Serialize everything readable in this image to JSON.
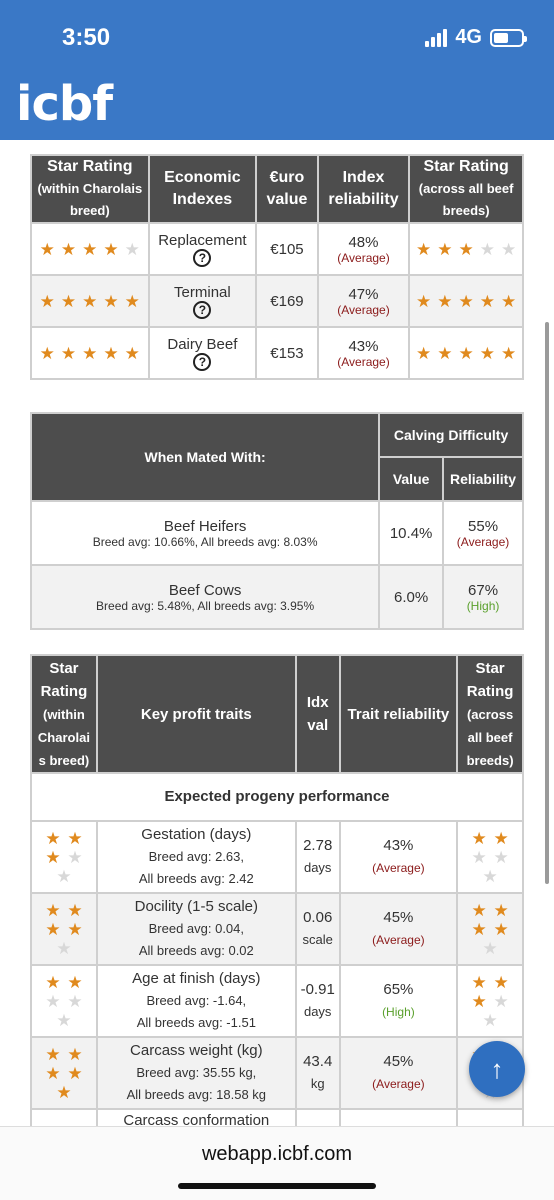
{
  "status_bar": {
    "time": "3:50",
    "network": "4G"
  },
  "logo": "icbf",
  "economic": {
    "headers": [
      "Star Rating",
      "(within Charolais breed)",
      "Economic Indexes",
      "€uro value",
      "Index reliability",
      "Star Rating",
      "(across all beef breeds)"
    ],
    "help": "?",
    "rows": [
      {
        "stars_within": 4,
        "index": "Replacement",
        "value": "€105",
        "reliability": "48%",
        "level": "(Average)",
        "stars_across": 3
      },
      {
        "stars_within": 5,
        "index": "Terminal",
        "value": "€169",
        "reliability": "47%",
        "level": "(Average)",
        "stars_across": 5
      },
      {
        "stars_within": 5,
        "index": "Dairy Beef",
        "value": "€153",
        "reliability": "43%",
        "level": "(Average)",
        "stars_across": 5
      }
    ]
  },
  "calving": {
    "mated_header": "When Mated With:",
    "group_header": "Calving Difficulty",
    "value_header": "Value",
    "reliability_header": "Reliability",
    "rows": [
      {
        "name": "Beef Heifers",
        "sub": "Breed avg: 10.66%, All breeds avg: 8.03%",
        "value": "10.4%",
        "reliability": "55%",
        "level": "(Average)"
      },
      {
        "name": "Beef Cows",
        "sub": "Breed avg: 5.48%, All breeds avg: 3.95%",
        "value": "6.0%",
        "reliability": "67%",
        "level": "(High)"
      }
    ]
  },
  "traits": {
    "headers": {
      "star_within": [
        "Star",
        "Rating",
        "(within",
        "Charolai",
        "s breed)"
      ],
      "key": "Key profit traits",
      "idx": [
        "Idx",
        "val"
      ],
      "trait_rel": "Trait reliability",
      "star_across": [
        "Star",
        "Rating",
        "(across",
        "all beef",
        "breeds)"
      ]
    },
    "section": "Expected progeny performance",
    "rows": [
      {
        "stars_within": 3,
        "name": "Gestation (days)",
        "breed": "Breed avg: 2.63,",
        "all": "All breeds avg: 2.42",
        "val": "2.78",
        "unit": "days",
        "rel": "43%",
        "level": "(Average)",
        "stars_across": 2
      },
      {
        "stars_within": 4,
        "name": "Docility (1-5 scale)",
        "breed": "Breed avg: 0.04,",
        "all": "All breeds avg: 0.02",
        "val": "0.06",
        "unit": "scale",
        "rel": "45%",
        "level": "(Average)",
        "stars_across": 4
      },
      {
        "stars_within": 2,
        "name": "Age at finish (days)",
        "breed": "Breed avg: -1.64,",
        "all": "All breeds avg: -1.51",
        "val": "-0.91",
        "unit": "days",
        "rel": "65%",
        "level": "(High)",
        "stars_across": 3
      },
      {
        "stars_within": 5,
        "name": "Carcass weight (kg)",
        "breed": "Breed avg: 35.55 kg,",
        "all": "All breeds avg: 18.58 kg",
        "val": "43.4",
        "unit": "kg",
        "rel": "45%",
        "level": "(Average)",
        "stars_across": 4
      },
      {
        "stars_within": 0,
        "name": "Carcass conformation",
        "breed": "",
        "all": "",
        "val": "",
        "unit": "",
        "rel": "",
        "level": "",
        "stars_across": 0
      }
    ]
  },
  "browser": {
    "url": "webapp.icbf.com"
  },
  "fab_icon": "arrow-up-icon",
  "colors": {
    "header": "#3a78c6",
    "star_on": "#e08a1e",
    "star_off": "#d8d8d8",
    "average": "#8b1a1a",
    "high": "#5aa02c"
  }
}
